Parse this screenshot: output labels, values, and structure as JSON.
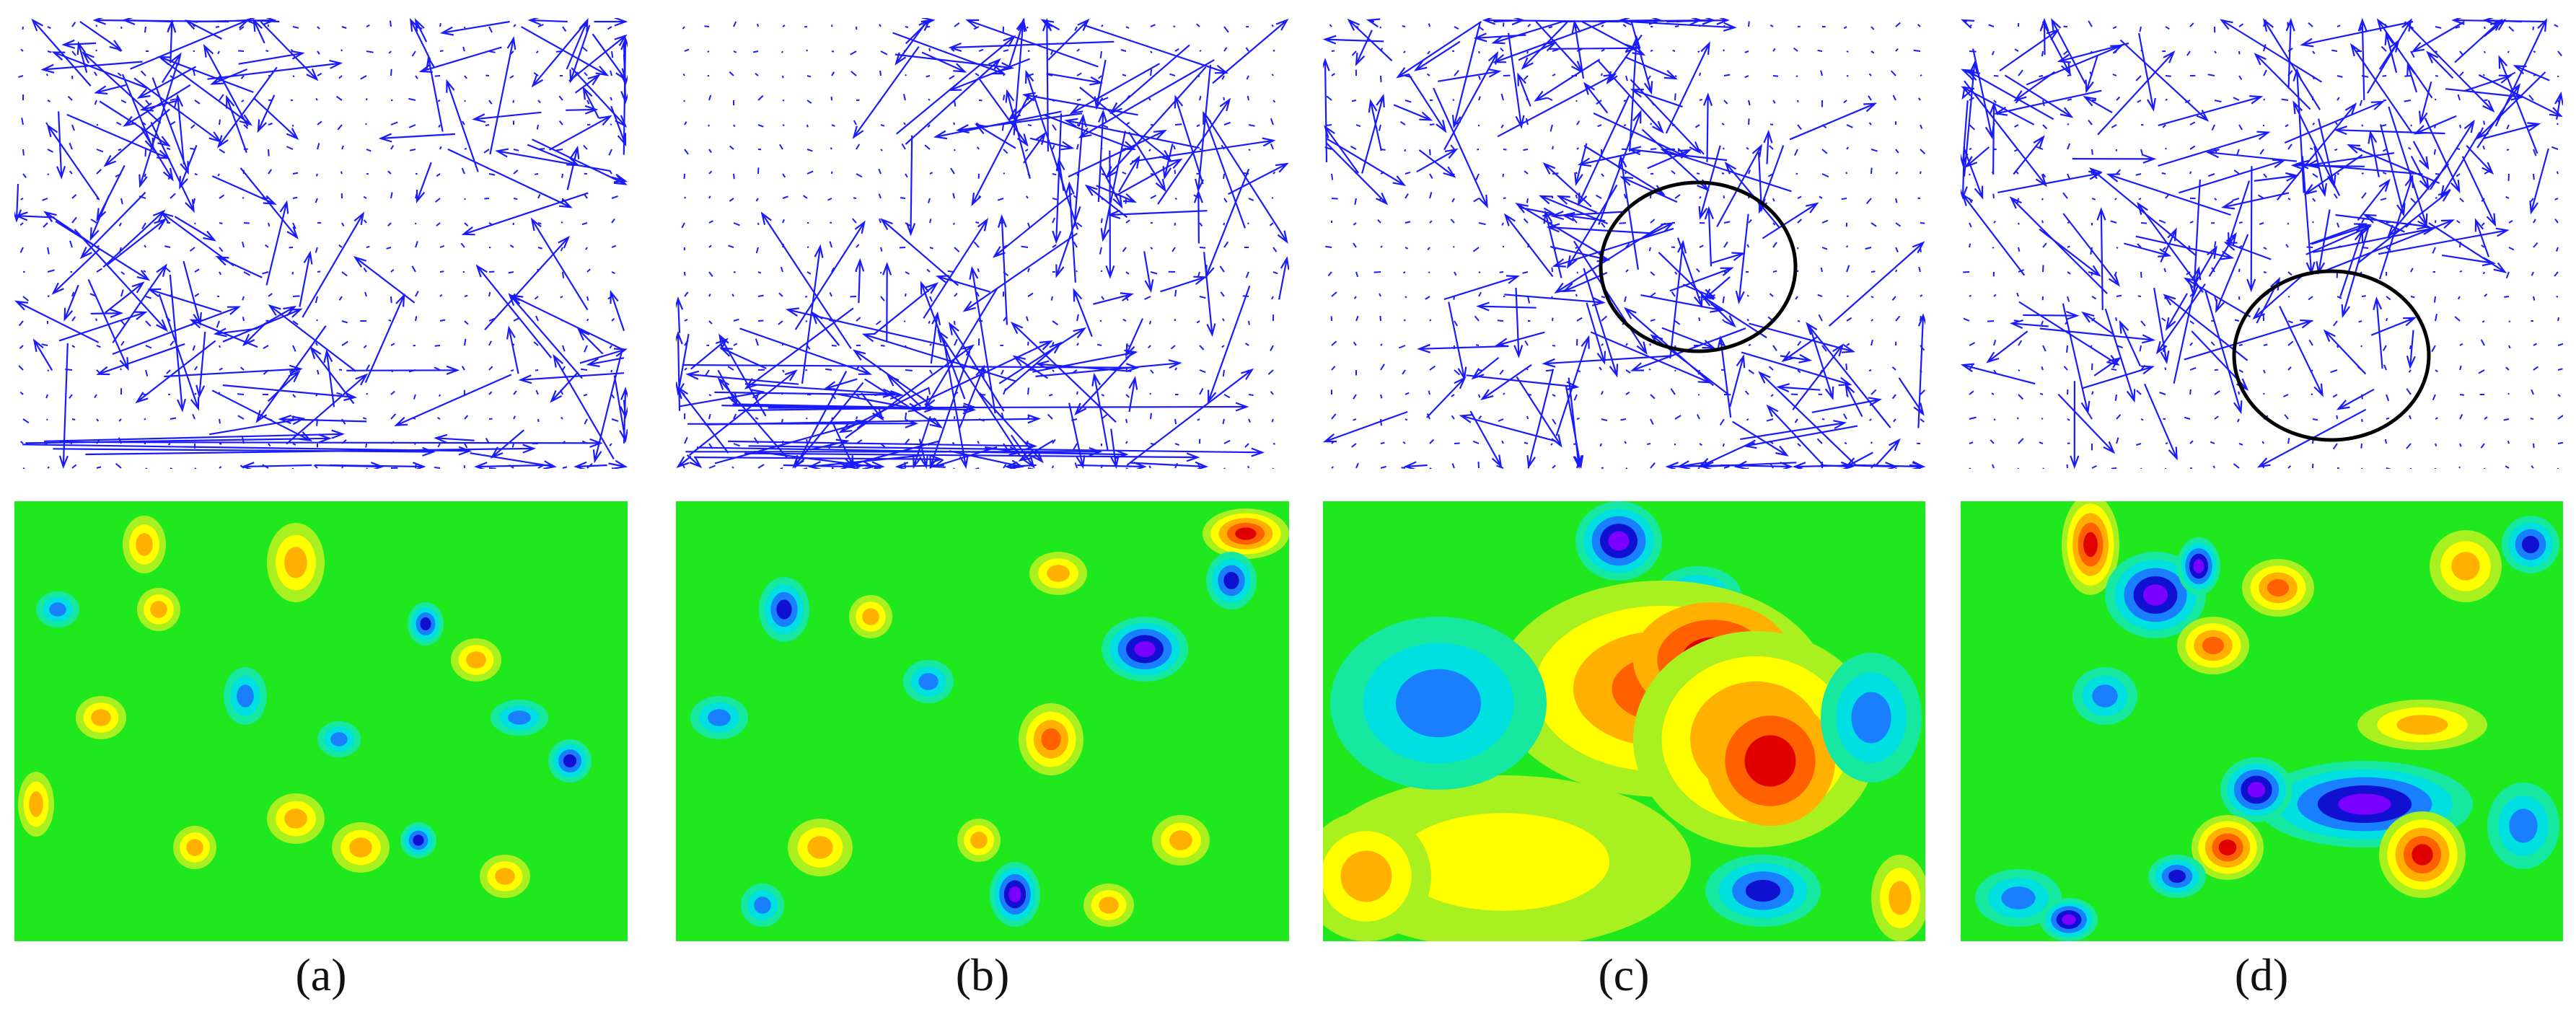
{
  "figure": {
    "panels": [
      {
        "id": "a",
        "caption": "(a)",
        "ellipse": false
      },
      {
        "id": "b",
        "caption": "(b)",
        "ellipse": false
      },
      {
        "id": "c",
        "caption": "(c)",
        "ellipse": true
      },
      {
        "id": "d",
        "caption": "(d)",
        "ellipse": true
      }
    ],
    "colors": {
      "vector": "#1a1aff",
      "dot": "#1a1aff",
      "ellipse": "#000000",
      "heat_background": "#1fe81f",
      "heat_palette": [
        "#7a00ff",
        "#1010d0",
        "#1a7fff",
        "#00e0e0",
        "#17e8a0",
        "#a8f020",
        "#ffff00",
        "#ffb000",
        "#ff6000",
        "#e00000"
      ]
    }
  }
}
